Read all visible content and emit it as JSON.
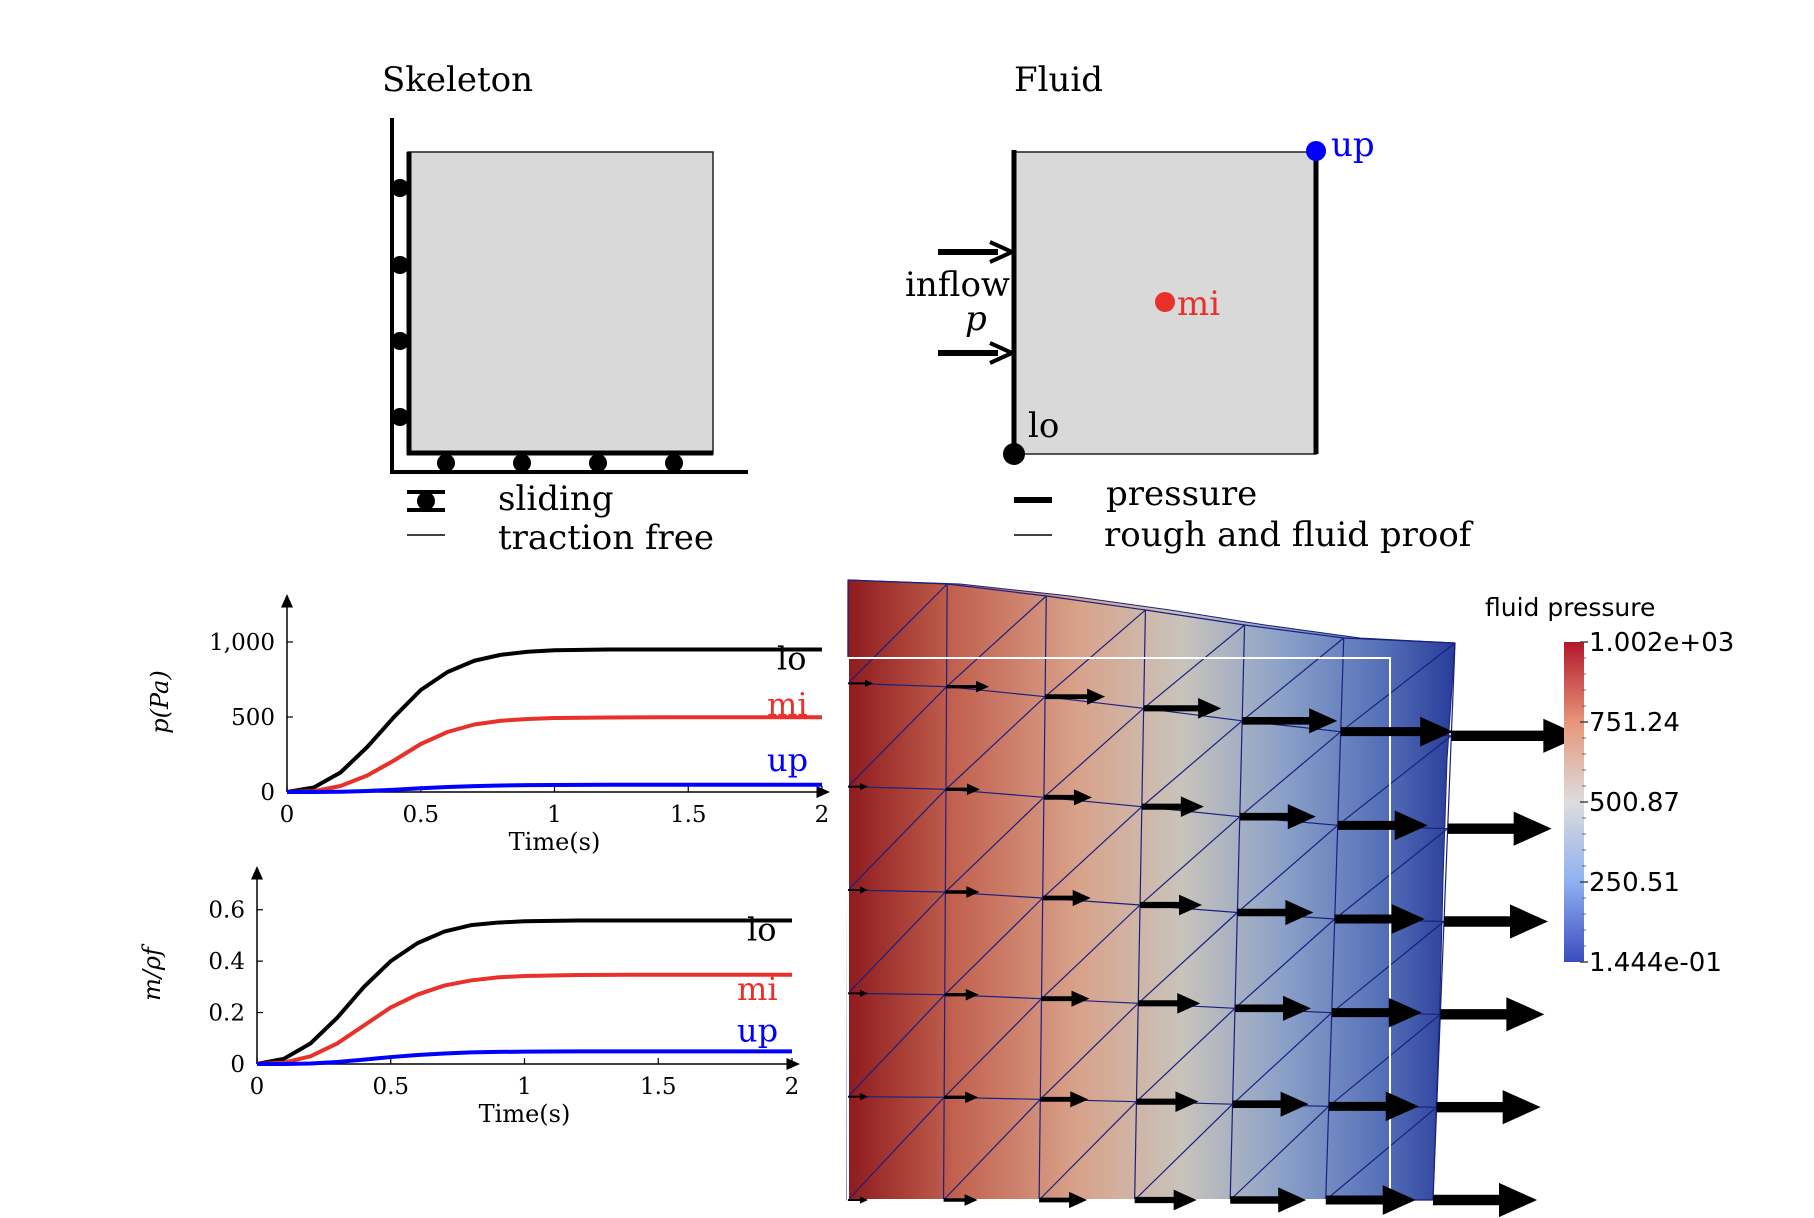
{
  "skeleton": {
    "title": "Skeleton",
    "legend": [
      {
        "label": "sliding"
      },
      {
        "label": "traction free"
      }
    ]
  },
  "fluid": {
    "title": "Fluid",
    "inflow_label": "inflow",
    "inflow_symbol": "p",
    "points": [
      {
        "label": "up",
        "color": "#0000ff"
      },
      {
        "label": "mi",
        "color": "#e8312a"
      },
      {
        "label": "lo",
        "color": "#000000"
      }
    ],
    "legend": [
      {
        "label": "pressure"
      },
      {
        "label": "rough and fluid proof"
      }
    ]
  },
  "colors": {
    "lo": "#000000",
    "mi": "#e8312a",
    "up": "#0000ff",
    "domain_fill": "#d9d9d9"
  },
  "chart_data": [
    {
      "type": "line",
      "xlabel": "Time(s)",
      "ylabel": "p(Pa)",
      "xlim": [
        0,
        2
      ],
      "ylim": [
        0,
        1200
      ],
      "xticks": [
        {
          "value": 0,
          "label": "0"
        },
        {
          "value": 0.5,
          "label": "0.5"
        },
        {
          "value": 1,
          "label": "1"
        },
        {
          "value": 1.5,
          "label": "1.5"
        },
        {
          "value": 2,
          "label": "2"
        }
      ],
      "yticks": [
        {
          "value": 0,
          "label": "0"
        },
        {
          "value": 500,
          "label": "500"
        },
        {
          "value": 1000,
          "label": "1,000"
        }
      ],
      "x": [
        0,
        0.1,
        0.2,
        0.3,
        0.4,
        0.5,
        0.6,
        0.7,
        0.8,
        0.9,
        1.0,
        1.2,
        1.4,
        1.6,
        1.8,
        2.0
      ],
      "series": [
        {
          "name": "lo",
          "color": "#000000",
          "values": [
            0,
            30,
            130,
            300,
            500,
            680,
            800,
            875,
            915,
            935,
            945,
            950,
            950,
            950,
            950,
            950
          ]
        },
        {
          "name": "mi",
          "color": "#e8312a",
          "values": [
            0,
            5,
            40,
            110,
            210,
            320,
            400,
            450,
            475,
            487,
            493,
            497,
            498,
            498,
            498,
            498
          ]
        },
        {
          "name": "up",
          "color": "#0000ff",
          "values": [
            0,
            0,
            2,
            7,
            15,
            25,
            33,
            39,
            43,
            46,
            47,
            48,
            48,
            48,
            48,
            48
          ]
        }
      ]
    },
    {
      "type": "line",
      "xlabel": "Time(s)",
      "ylabel": "m/ρf",
      "xlim": [
        0,
        2
      ],
      "ylim": [
        0,
        0.7
      ],
      "xticks": [
        {
          "value": 0,
          "label": "0"
        },
        {
          "value": 0.5,
          "label": "0.5"
        },
        {
          "value": 1,
          "label": "1"
        },
        {
          "value": 1.5,
          "label": "1.5"
        },
        {
          "value": 2,
          "label": "2"
        }
      ],
      "yticks": [
        {
          "value": 0,
          "label": "0"
        },
        {
          "value": 0.2,
          "label": "0.2"
        },
        {
          "value": 0.4,
          "label": "0.4"
        },
        {
          "value": 0.6,
          "label": "0.6"
        }
      ],
      "x": [
        0,
        0.1,
        0.2,
        0.3,
        0.4,
        0.5,
        0.6,
        0.7,
        0.8,
        0.9,
        1.0,
        1.2,
        1.4,
        1.6,
        1.8,
        2.0
      ],
      "series": [
        {
          "name": "lo",
          "color": "#000000",
          "values": [
            0,
            0.02,
            0.08,
            0.18,
            0.3,
            0.4,
            0.47,
            0.515,
            0.54,
            0.55,
            0.555,
            0.558,
            0.558,
            0.558,
            0.558,
            0.558
          ]
        },
        {
          "name": "mi",
          "color": "#e8312a",
          "values": [
            0,
            0.005,
            0.03,
            0.08,
            0.15,
            0.22,
            0.27,
            0.305,
            0.325,
            0.337,
            0.342,
            0.346,
            0.347,
            0.347,
            0.347,
            0.347
          ]
        },
        {
          "name": "up",
          "color": "#0000ff",
          "values": [
            0,
            0,
            0.002,
            0.008,
            0.017,
            0.027,
            0.035,
            0.041,
            0.045,
            0.047,
            0.048,
            0.049,
            0.049,
            0.049,
            0.049,
            0.049
          ]
        }
      ]
    }
  ],
  "colorbar": {
    "title": "fluid pressure",
    "labels": [
      "1.002e+03",
      "751.24",
      "500.87",
      "250.51",
      "1.444e-01"
    ],
    "color_high": "#9a1b20",
    "color_mid": "#dddddd",
    "color_low": "#3a4cc0"
  }
}
